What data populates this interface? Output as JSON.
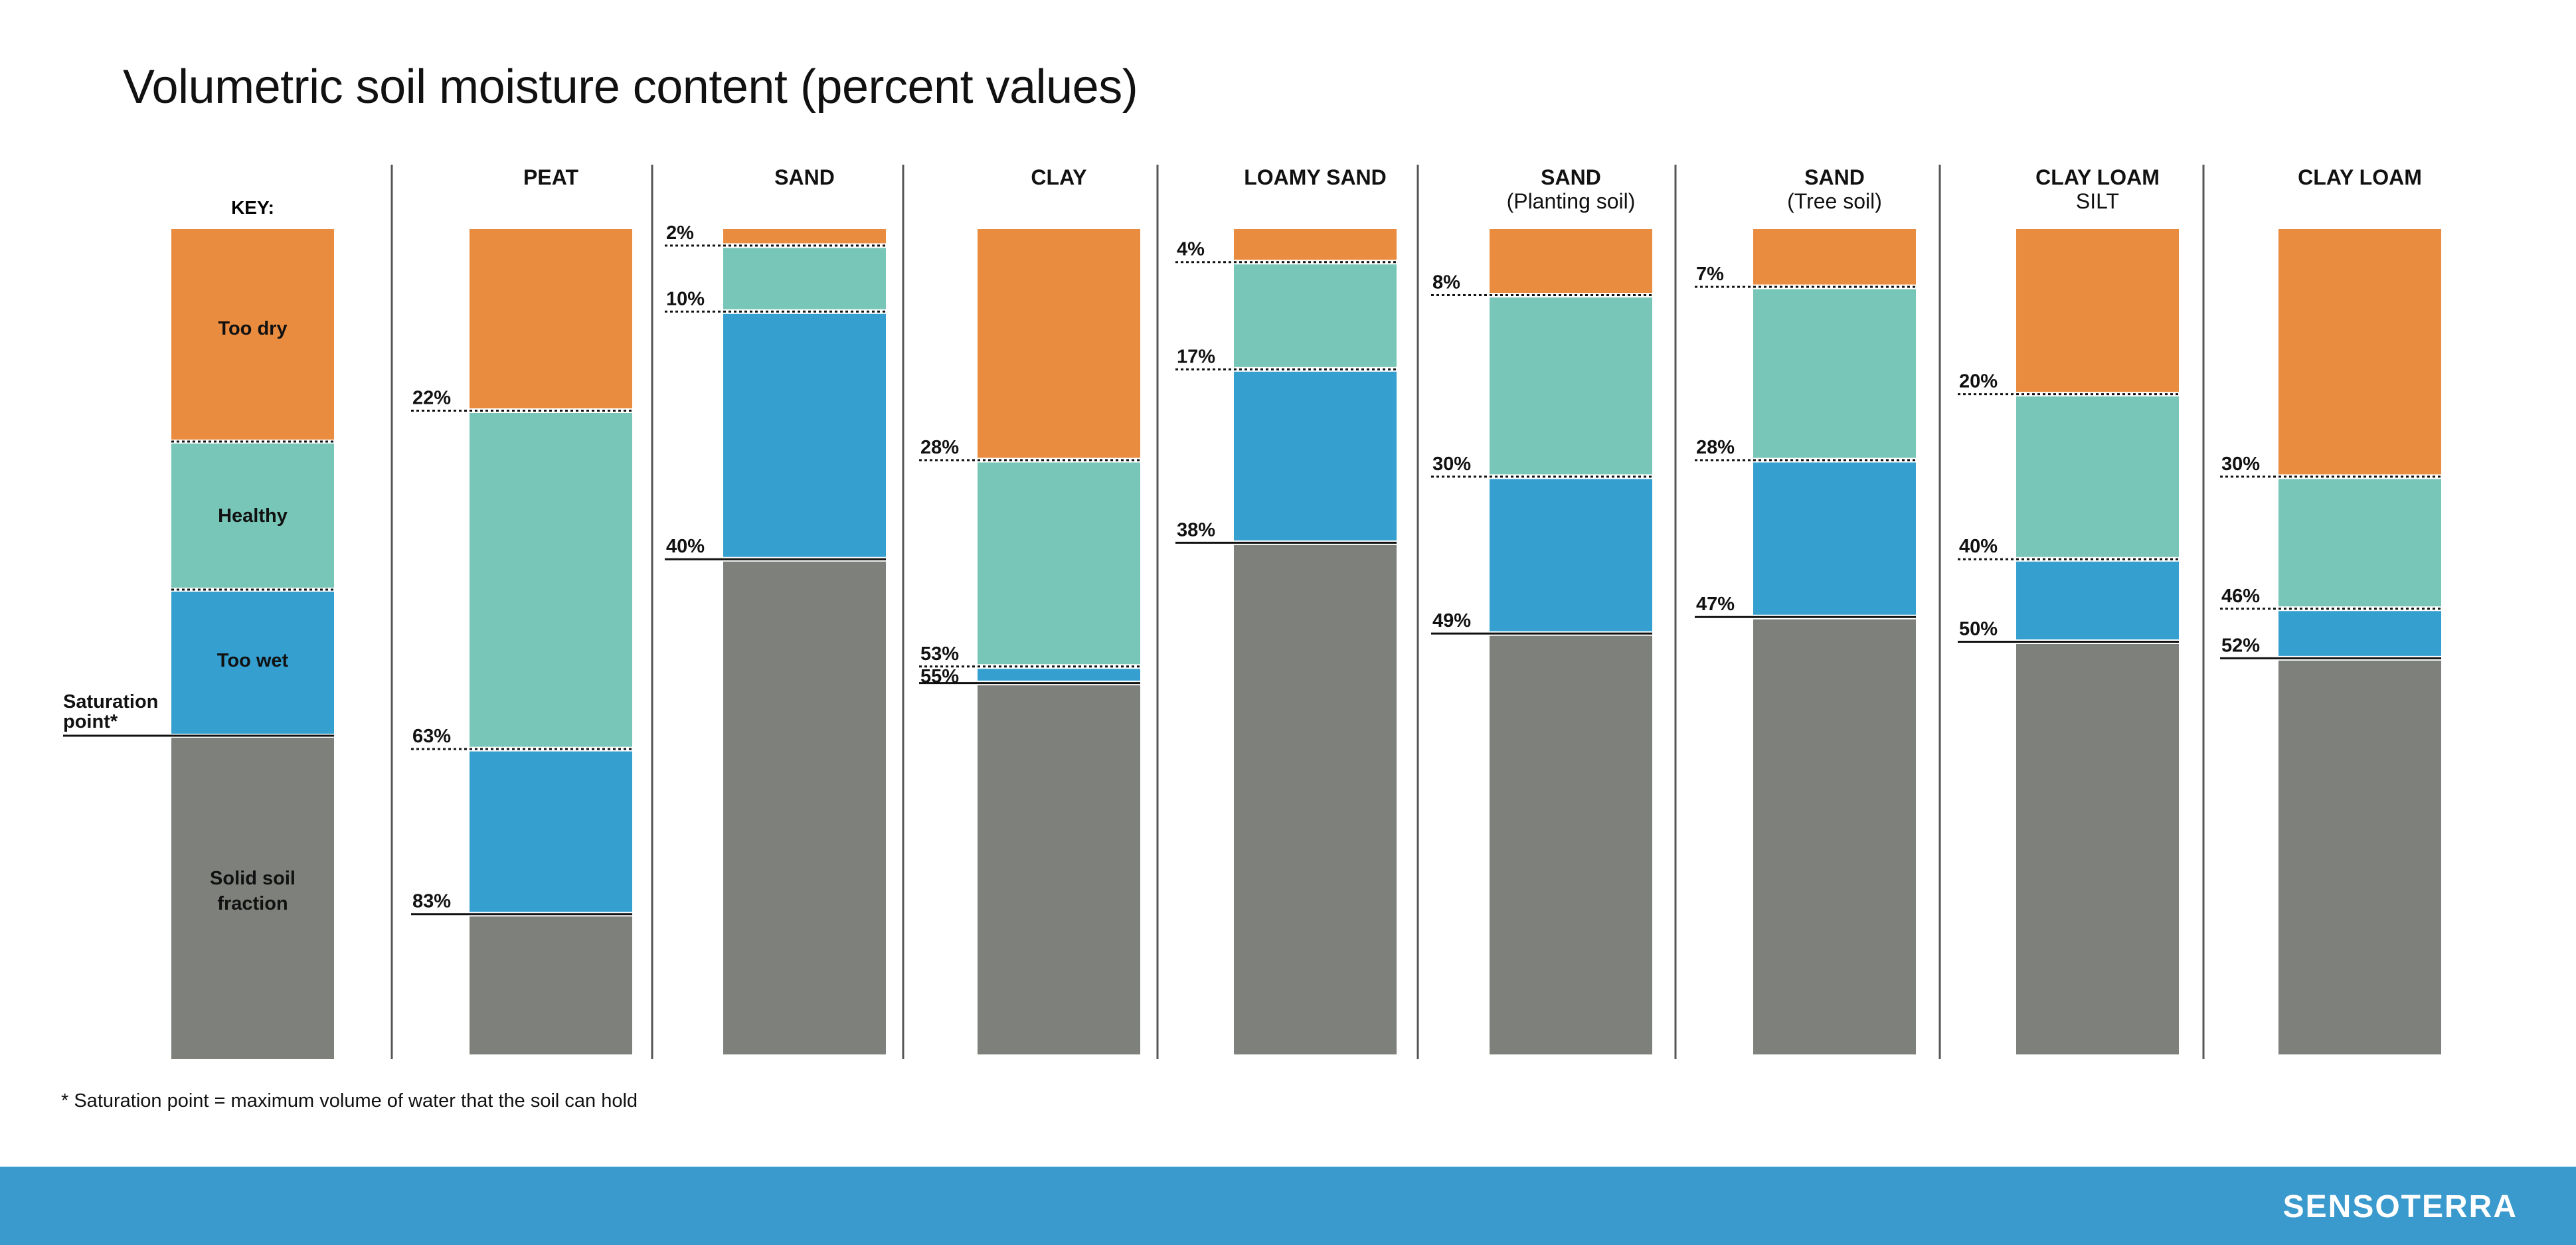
{
  "title": "Volumetric soil moisture content (percent values)",
  "footnote": "* Saturation point = maximum volume of water that the soil can hold",
  "brand": "SENSOTERRA",
  "colors": {
    "too_dry": "#E98C3F",
    "healthy": "#78C6B7",
    "too_wet": "#35A0D0",
    "solid": "#7E807B",
    "footer": "#3A9ACD",
    "divider": "#555555"
  },
  "key": {
    "title": "KEY:",
    "too_dry": "Too dry",
    "healthy": "Healthy",
    "too_wet": "Too wet",
    "solid": [
      "Solid soil",
      "fraction"
    ],
    "saturation": [
      "Saturation",
      "point*"
    ]
  },
  "chart_data": {
    "type": "bar",
    "title": "Volumetric soil moisture content (percent values)",
    "stacking": "stacked-100",
    "segments": [
      "Too dry",
      "Healthy",
      "Too wet",
      "Solid soil fraction"
    ],
    "categories": [
      {
        "name": [
          "PEAT"
        ],
        "thresholds": [
          22,
          63,
          83
        ],
        "labels": [
          "22%",
          "63%",
          "83%"
        ]
      },
      {
        "name": [
          "SAND"
        ],
        "thresholds": [
          2,
          10,
          40
        ],
        "labels": [
          "2%",
          "10%",
          "40%"
        ]
      },
      {
        "name": [
          "CLAY"
        ],
        "thresholds": [
          28,
          53,
          55
        ],
        "labels": [
          "28%",
          "53%",
          "55%"
        ]
      },
      {
        "name": [
          "LOAMY SAND"
        ],
        "thresholds": [
          4,
          17,
          38
        ],
        "labels": [
          "4%",
          "17%",
          "38%"
        ]
      },
      {
        "name": [
          "SAND",
          "(Planting soil)"
        ],
        "thresholds": [
          8,
          30,
          49
        ],
        "labels": [
          "8%",
          "30%",
          "49%"
        ]
      },
      {
        "name": [
          "SAND",
          "(Tree soil)"
        ],
        "thresholds": [
          7,
          28,
          47
        ],
        "labels": [
          "7%",
          "28%",
          "47%"
        ]
      },
      {
        "name": [
          "CLAY LOAM",
          "SILT"
        ],
        "thresholds": [
          20,
          40,
          50
        ],
        "labels": [
          "20%",
          "40%",
          "50%"
        ]
      },
      {
        "name": [
          "CLAY LOAM"
        ],
        "thresholds": [
          30,
          46,
          52
        ],
        "labels": [
          "30%",
          "46%",
          "52%"
        ]
      }
    ]
  }
}
